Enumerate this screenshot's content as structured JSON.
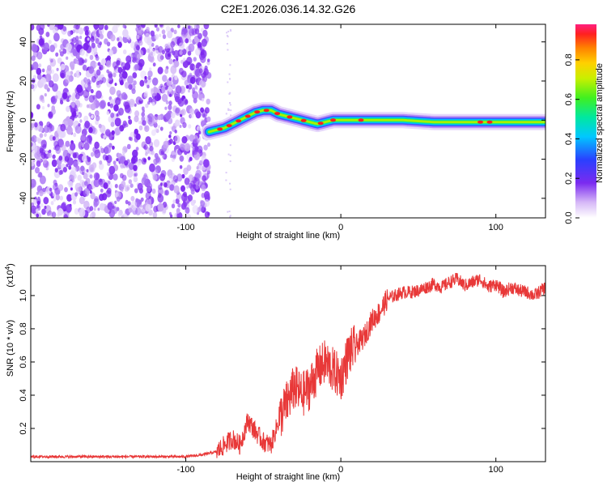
{
  "title": "C2E1.2026.036.14.32.G26",
  "chart_data": [
    {
      "type": "heatmap",
      "xlabel": "Height of straight line (km)",
      "ylabel": "Frequency (Hz)",
      "xlim": [
        -200,
        132
      ],
      "ylim": [
        -50,
        49
      ],
      "xticks": [
        -100,
        0,
        100
      ],
      "yticks": [
        -40,
        -20,
        0,
        20,
        40
      ],
      "noise_region_x": [
        -200,
        -85
      ],
      "signal_ridge": {
        "x": [
          -85,
          -80,
          -75,
          -70,
          -65,
          -60,
          -55,
          -50,
          -45,
          -40,
          -35,
          -30,
          -25,
          -20,
          -15,
          -10,
          -5,
          0,
          10,
          20,
          40,
          60,
          80,
          100,
          120,
          132
        ],
        "y": [
          -6,
          -5,
          -4,
          -2,
          0,
          2,
          4,
          5,
          5,
          3,
          2,
          1,
          0,
          -1,
          -2,
          -1,
          0,
          0,
          0,
          0,
          0,
          -1,
          -1,
          -1,
          -1,
          -1
        ]
      },
      "colorbar": {
        "label": "Normalized spectral amplitude",
        "ticks": [
          0.0,
          0.2,
          0.4,
          0.6,
          0.8
        ],
        "range": [
          0,
          0.98
        ]
      }
    },
    {
      "type": "line",
      "xlabel": "Height of straight line (km)",
      "ylabel": "SNR (10 * v/v)",
      "multiplier_label": "(x10",
      "multiplier_exp": "4",
      "multiplier_close": ")",
      "xlim": [
        -200,
        132
      ],
      "ylim": [
        0,
        1.18
      ],
      "xticks": [
        -100,
        0,
        100
      ],
      "yticks": [
        0.2,
        0.4,
        0.6,
        0.8,
        1.0
      ],
      "series_color": "#e83838",
      "x": [
        -200,
        -180,
        -160,
        -140,
        -120,
        -100,
        -90,
        -80,
        -75,
        -70,
        -65,
        -60,
        -55,
        -50,
        -45,
        -40,
        -35,
        -30,
        -25,
        -20,
        -15,
        -10,
        -5,
        0,
        5,
        10,
        15,
        20,
        25,
        30,
        35,
        40,
        45,
        50,
        55,
        60,
        65,
        70,
        75,
        80,
        85,
        90,
        95,
        100,
        105,
        110,
        115,
        120,
        125,
        132
      ],
      "y": [
        0.03,
        0.03,
        0.03,
        0.03,
        0.03,
        0.03,
        0.04,
        0.06,
        0.1,
        0.14,
        0.1,
        0.25,
        0.18,
        0.12,
        0.1,
        0.25,
        0.35,
        0.45,
        0.4,
        0.45,
        0.55,
        0.6,
        0.55,
        0.5,
        0.65,
        0.7,
        0.75,
        0.85,
        0.9,
        0.98,
        1.0,
        1.02,
        1.02,
        1.03,
        1.05,
        1.07,
        1.05,
        1.08,
        1.1,
        1.06,
        1.08,
        1.1,
        1.05,
        1.07,
        1.02,
        1.05,
        1.03,
        1.02,
        1.0,
        1.05
      ]
    }
  ],
  "colors": {
    "noise": "#7a22ee",
    "noise_light": "#c9a6f5",
    "ridge_core": "#ff2020"
  }
}
